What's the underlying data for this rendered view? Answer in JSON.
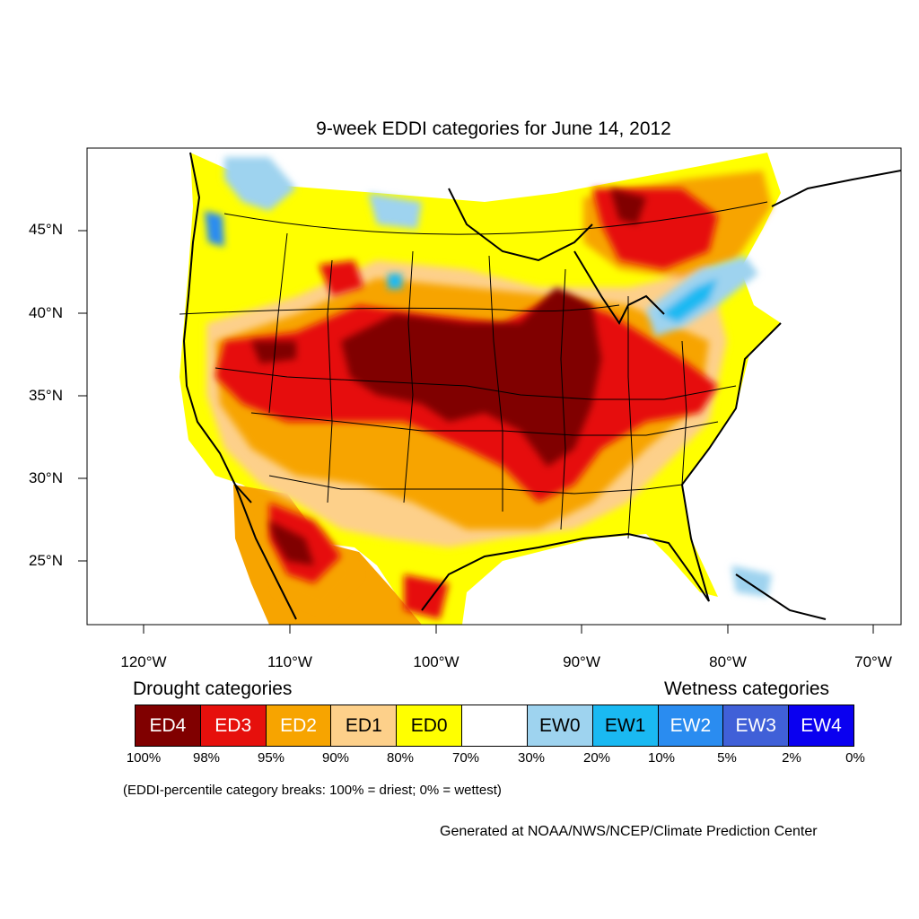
{
  "title": "9-week EDDI categories for June 14, 2012",
  "lat_labels": [
    "45°N",
    "40°N",
    "35°N",
    "30°N",
    "25°N"
  ],
  "lon_labels": [
    "120°W",
    "110°W",
    "100°W",
    "90°W",
    "80°W",
    "70°W"
  ],
  "legend": {
    "drought_label": "Drought categories",
    "wetness_label": "Wetness categories",
    "categories": [
      {
        "label": "ED4",
        "color": "#800000",
        "text_color": "#ffffff"
      },
      {
        "label": "ED3",
        "color": "#e6100c",
        "text_color": "#ffffff"
      },
      {
        "label": "ED2",
        "color": "#f7a400",
        "text_color": "#ffffff"
      },
      {
        "label": "ED1",
        "color": "#fdd08a",
        "text_color": "#000000"
      },
      {
        "label": "ED0",
        "color": "#ffff00",
        "text_color": "#000000"
      },
      {
        "label": "",
        "color": "#ffffff",
        "text_color": "#000000"
      },
      {
        "label": "EW0",
        "color": "#9ed3ef",
        "text_color": "#000000"
      },
      {
        "label": "EW1",
        "color": "#1ab9f2",
        "text_color": "#000000"
      },
      {
        "label": "EW2",
        "color": "#2a8cf0",
        "text_color": "#ffffff"
      },
      {
        "label": "EW3",
        "color": "#4060d8",
        "text_color": "#ffffff"
      },
      {
        "label": "EW4",
        "color": "#0a00f0",
        "text_color": "#ffffff"
      }
    ],
    "percent_breaks": [
      "100%",
      "98%",
      "95%",
      "90%",
      "80%",
      "70%",
      "30%",
      "20%",
      "10%",
      "5%",
      "2%",
      "0%"
    ]
  },
  "note": "(EDDI-percentile category breaks: 100% = driest; 0% = wettest)",
  "credit": "Generated at NOAA/NWS/NCEP/Climate Prediction Center"
}
